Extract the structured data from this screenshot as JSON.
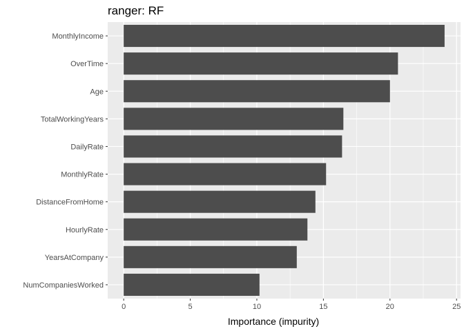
{
  "chart_data": {
    "type": "bar",
    "orientation": "horizontal",
    "title": "ranger: RF",
    "xlabel": "Importance (impurity)",
    "ylabel": "",
    "categories": [
      "MonthlyIncome",
      "OverTime",
      "Age",
      "TotalWorkingYears",
      "DailyRate",
      "MonthlyRate",
      "DistanceFromHome",
      "HourlyRate",
      "YearsAtCompany",
      "NumCompaniesWorked"
    ],
    "values": [
      24.1,
      20.6,
      20.0,
      16.5,
      16.4,
      15.2,
      14.4,
      13.8,
      13.0,
      10.2
    ],
    "xlim": [
      -1.2,
      25.3
    ],
    "xticks": [
      0,
      5,
      10,
      15,
      20,
      25
    ],
    "xtick_labels": [
      "0",
      "5",
      "10",
      "15",
      "20",
      "25"
    ],
    "grid": true,
    "colors": {
      "bar": "#4d4d4d",
      "panel": "#ebebeb",
      "grid": "#ffffff"
    }
  }
}
